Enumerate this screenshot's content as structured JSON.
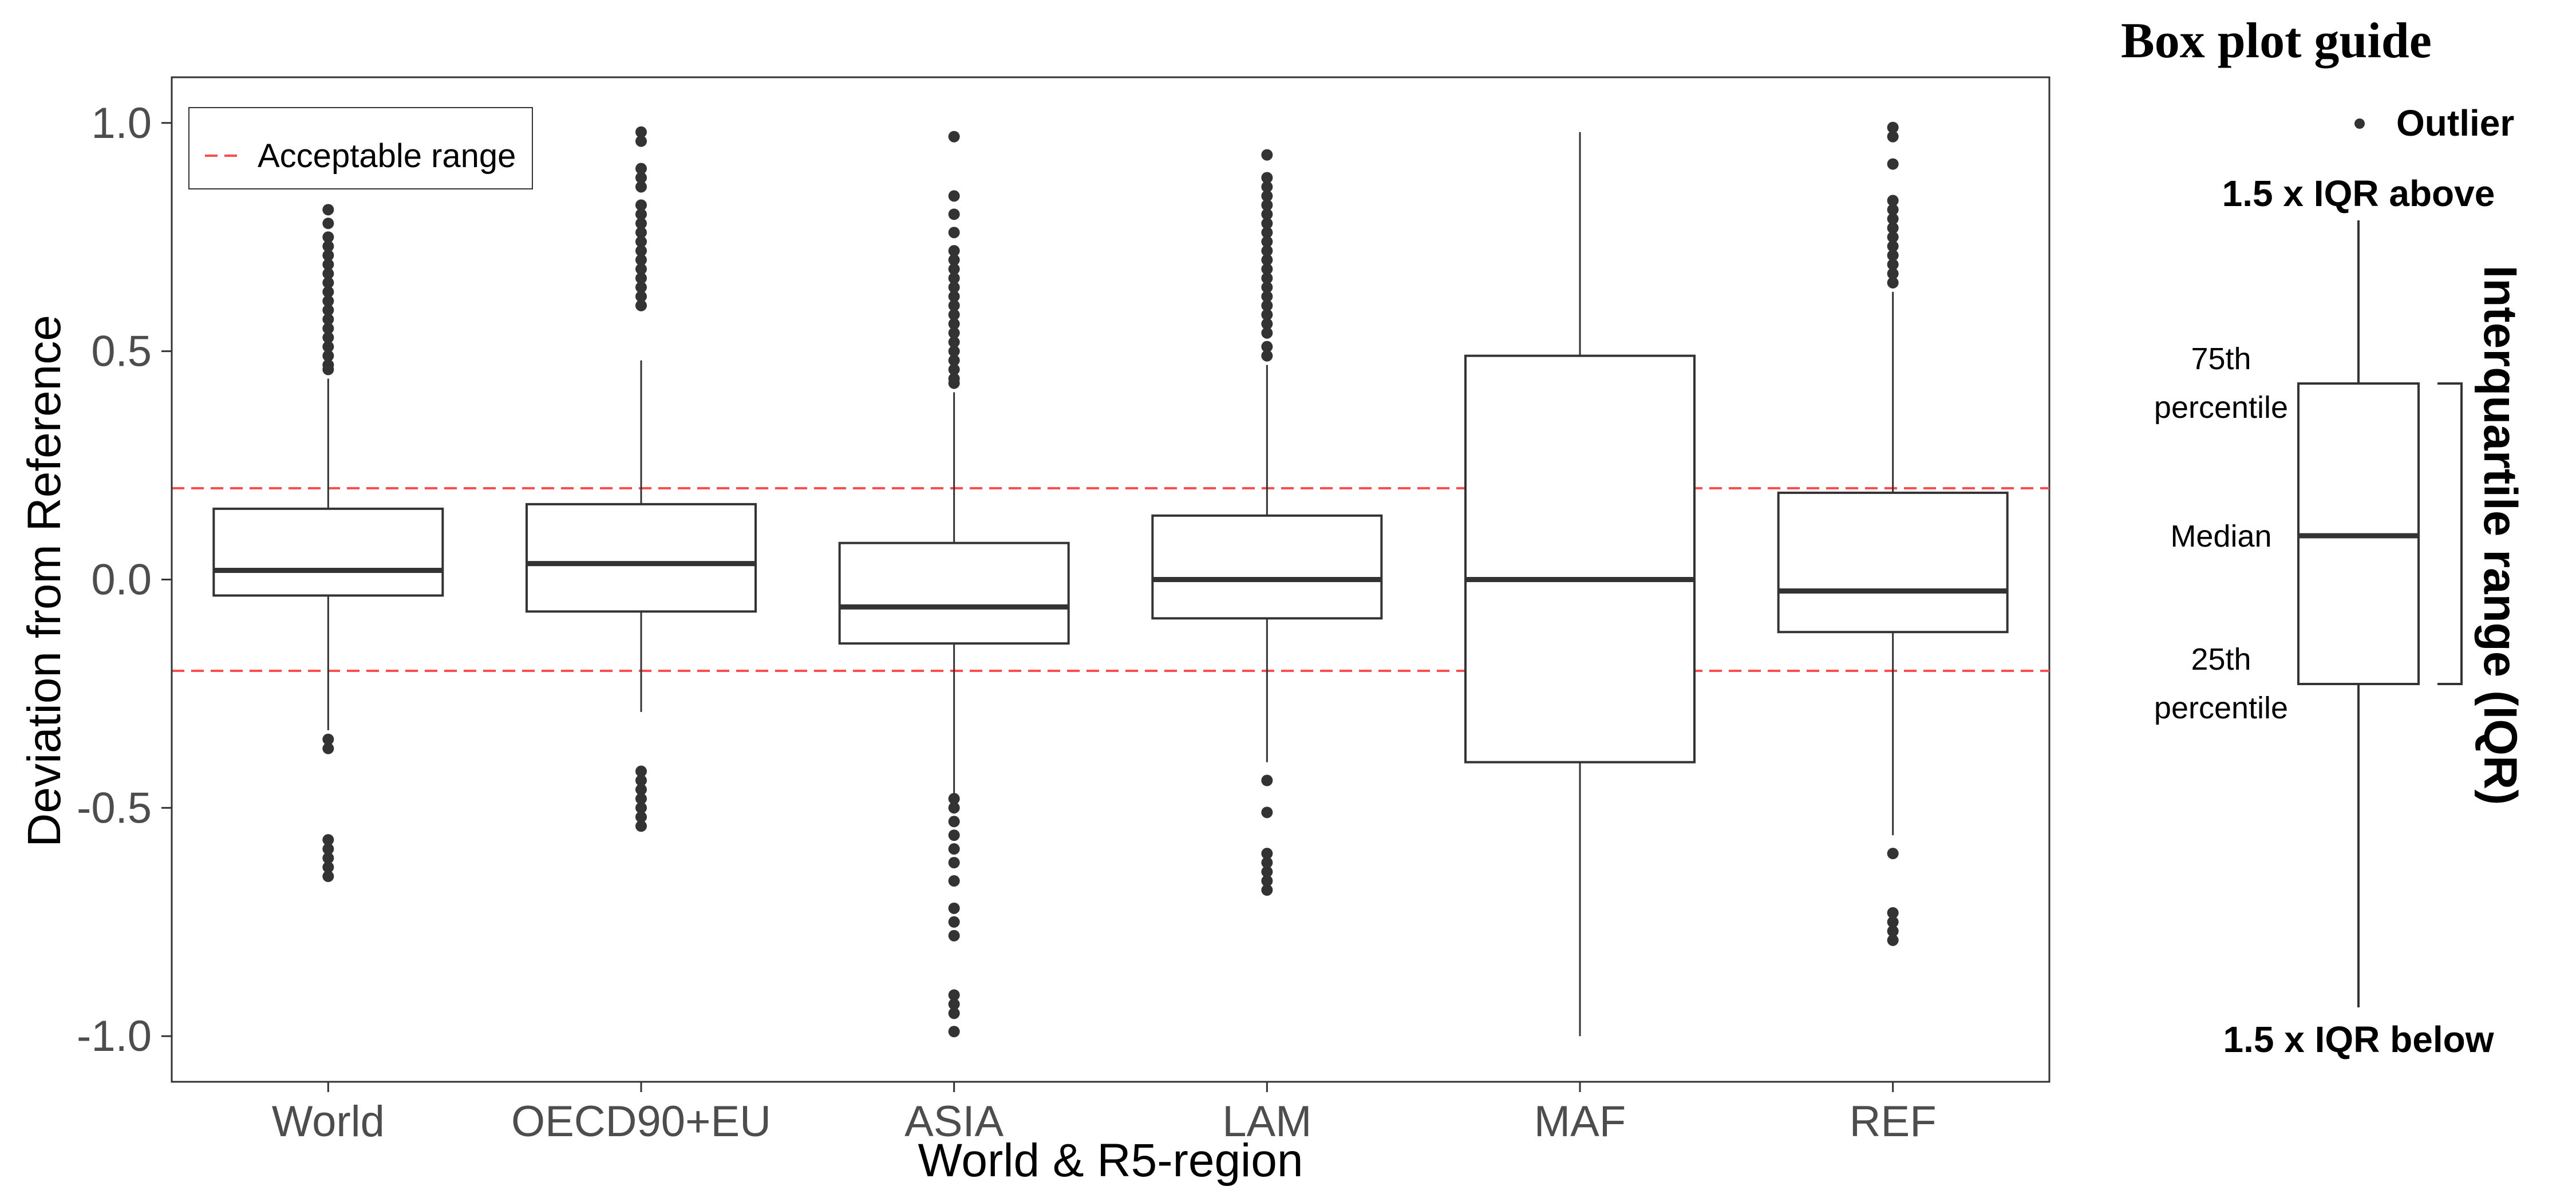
{
  "chart_data": {
    "type": "box",
    "xlabel": "World & R5-region",
    "ylabel": "Deviation from Reference",
    "ylim": [
      -1.1,
      1.1
    ],
    "yticks": [
      1.0,
      0.5,
      0.0,
      -0.5,
      -1.0
    ],
    "ytick_labels": [
      "1.0",
      "0.5",
      "0.0",
      "-0.5",
      "-1.0"
    ],
    "grid": false,
    "legend": {
      "position": "top-left",
      "entries": [
        {
          "label": "Acceptable range",
          "style": "dashed",
          "color": "#ff4d4d"
        }
      ]
    },
    "reference_lines": [
      0.2,
      -0.2
    ],
    "categories": [
      "World",
      "OECD90+EU",
      "ASIA",
      "LAM",
      "MAF",
      "REF"
    ],
    "boxes": [
      {
        "q1": -0.035,
        "median": 0.02,
        "q3": 0.155,
        "whisker_low": -0.33,
        "whisker_high": 0.44,
        "outliers": [
          0.81,
          0.78,
          0.75,
          0.73,
          0.71,
          0.69,
          0.67,
          0.65,
          0.63,
          0.61,
          0.59,
          0.57,
          0.55,
          0.53,
          0.51,
          0.49,
          0.47,
          0.46,
          -0.35,
          -0.37,
          -0.57,
          -0.59,
          -0.61,
          -0.63,
          -0.65
        ]
      },
      {
        "q1": -0.07,
        "median": 0.035,
        "q3": 0.165,
        "whisker_low": -0.29,
        "whisker_high": 0.48,
        "outliers": [
          0.98,
          0.96,
          0.9,
          0.88,
          0.86,
          0.82,
          0.8,
          0.78,
          0.76,
          0.74,
          0.72,
          0.7,
          0.68,
          0.66,
          0.64,
          0.62,
          0.6,
          -0.42,
          -0.44,
          -0.46,
          -0.48,
          -0.5,
          -0.52,
          -0.54
        ]
      },
      {
        "q1": -0.14,
        "median": -0.06,
        "q3": 0.08,
        "whisker_low": -0.47,
        "whisker_high": 0.41,
        "outliers": [
          0.97,
          0.84,
          0.8,
          0.76,
          0.72,
          0.7,
          0.68,
          0.66,
          0.64,
          0.62,
          0.6,
          0.58,
          0.56,
          0.54,
          0.52,
          0.5,
          0.48,
          0.46,
          0.44,
          0.43,
          -0.48,
          -0.5,
          -0.53,
          -0.56,
          -0.59,
          -0.62,
          -0.66,
          -0.72,
          -0.75,
          -0.78,
          -0.91,
          -0.93,
          -0.95,
          -0.99
        ]
      },
      {
        "q1": -0.085,
        "median": 0.0,
        "q3": 0.14,
        "whisker_low": -0.4,
        "whisker_high": 0.47,
        "outliers": [
          0.93,
          0.88,
          0.86,
          0.84,
          0.82,
          0.8,
          0.78,
          0.76,
          0.74,
          0.72,
          0.7,
          0.68,
          0.66,
          0.64,
          0.62,
          0.6,
          0.58,
          0.56,
          0.54,
          0.51,
          0.49,
          -0.44,
          -0.51,
          -0.6,
          -0.62,
          -0.64,
          -0.66,
          -0.68
        ]
      },
      {
        "q1": -0.4,
        "median": 0.0,
        "q3": 0.49,
        "whisker_low": -1.0,
        "whisker_high": 0.98,
        "outliers": []
      },
      {
        "q1": -0.115,
        "median": -0.025,
        "q3": 0.19,
        "whisker_low": -0.56,
        "whisker_high": 0.63,
        "outliers": [
          0.99,
          0.97,
          0.91,
          0.83,
          0.81,
          0.79,
          0.77,
          0.75,
          0.73,
          0.71,
          0.69,
          0.67,
          0.65,
          -0.6,
          -0.73,
          -0.75,
          -0.77,
          -0.79
        ]
      }
    ]
  },
  "guide": {
    "title": "Box plot guide",
    "outlier": "Outlier",
    "upper_whisker": "1.5 x IQR above",
    "lower_whisker": "1.5 x IQR below",
    "q3_line1": "75th",
    "q3_line2": "percentile",
    "median": "Median",
    "q1_line1": "25th",
    "q1_line2": "percentile",
    "iqr": "Interquartile range (IQR)"
  },
  "colors": {
    "box": "#333333",
    "reference": "#ff4d4d",
    "axis": "#333333"
  }
}
